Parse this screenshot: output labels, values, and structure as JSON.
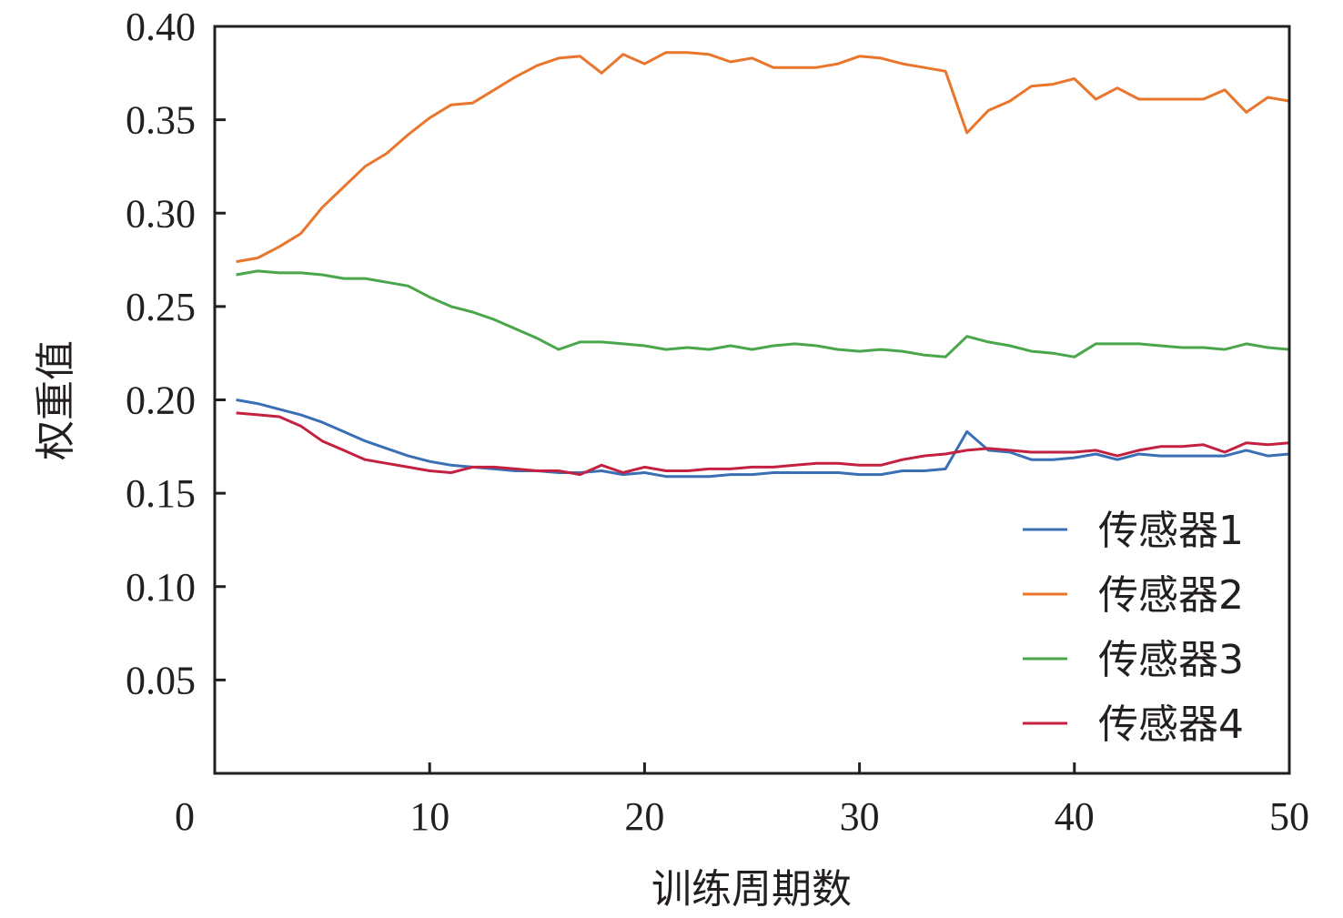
{
  "chart_data": {
    "type": "line",
    "title": "",
    "xlabel": "训练周期数",
    "ylabel": "权重值",
    "xlim": [
      0,
      50
    ],
    "ylim": [
      0,
      0.4
    ],
    "origin_label": "0",
    "xticks": [
      10,
      20,
      30,
      40,
      50
    ],
    "xtick_labels": [
      "10",
      "20",
      "30",
      "40",
      "50"
    ],
    "yticks": [
      0.05,
      0.1,
      0.15,
      0.2,
      0.25,
      0.3,
      0.35,
      0.4
    ],
    "ytick_labels": [
      "0.05",
      "0.10",
      "0.15",
      "0.20",
      "0.25",
      "0.30",
      "0.35",
      "0.40"
    ],
    "grid": false,
    "legend_position": "bottom-right",
    "x": [
      1,
      2,
      3,
      4,
      5,
      6,
      7,
      8,
      9,
      10,
      11,
      12,
      13,
      14,
      15,
      16,
      17,
      18,
      19,
      20,
      21,
      22,
      23,
      24,
      25,
      26,
      27,
      28,
      29,
      30,
      31,
      32,
      33,
      34,
      35,
      36,
      37,
      38,
      39,
      40,
      41,
      42,
      43,
      44,
      45,
      46,
      47,
      48,
      49,
      50
    ],
    "series": [
      {
        "name": "传感器1",
        "color": "#3a6fb5",
        "values": [
          0.2,
          0.198,
          0.195,
          0.192,
          0.188,
          0.183,
          0.178,
          0.174,
          0.17,
          0.167,
          0.165,
          0.164,
          0.163,
          0.162,
          0.162,
          0.161,
          0.161,
          0.162,
          0.16,
          0.161,
          0.159,
          0.159,
          0.159,
          0.16,
          0.16,
          0.161,
          0.161,
          0.161,
          0.161,
          0.16,
          0.16,
          0.162,
          0.162,
          0.163,
          0.183,
          0.173,
          0.172,
          0.168,
          0.168,
          0.169,
          0.171,
          0.168,
          0.171,
          0.17,
          0.17,
          0.17,
          0.17,
          0.173,
          0.17,
          0.171
        ]
      },
      {
        "name": "传感器2",
        "color": "#e8762d",
        "values": [
          0.274,
          0.276,
          0.282,
          0.289,
          0.303,
          0.314,
          0.325,
          0.332,
          0.342,
          0.351,
          0.358,
          0.359,
          0.366,
          0.373,
          0.379,
          0.383,
          0.384,
          0.375,
          0.385,
          0.38,
          0.386,
          0.386,
          0.385,
          0.381,
          0.383,
          0.378,
          0.378,
          0.378,
          0.38,
          0.384,
          0.383,
          0.38,
          0.378,
          0.376,
          0.343,
          0.355,
          0.36,
          0.368,
          0.369,
          0.372,
          0.361,
          0.367,
          0.361,
          0.361,
          0.361,
          0.361,
          0.366,
          0.354,
          0.362,
          0.36
        ]
      },
      {
        "name": "传感器3",
        "color": "#4aa64a",
        "values": [
          0.267,
          0.269,
          0.268,
          0.268,
          0.267,
          0.265,
          0.265,
          0.263,
          0.261,
          0.255,
          0.25,
          0.247,
          0.243,
          0.238,
          0.233,
          0.227,
          0.231,
          0.231,
          0.23,
          0.229,
          0.227,
          0.228,
          0.227,
          0.229,
          0.227,
          0.229,
          0.23,
          0.229,
          0.227,
          0.226,
          0.227,
          0.226,
          0.224,
          0.223,
          0.234,
          0.231,
          0.229,
          0.226,
          0.225,
          0.223,
          0.23,
          0.23,
          0.23,
          0.229,
          0.228,
          0.228,
          0.227,
          0.23,
          0.228,
          0.227
        ]
      },
      {
        "name": "传感器4",
        "color": "#c42040",
        "values": [
          0.193,
          0.192,
          0.191,
          0.186,
          0.178,
          0.173,
          0.168,
          0.166,
          0.164,
          0.162,
          0.161,
          0.164,
          0.164,
          0.163,
          0.162,
          0.162,
          0.16,
          0.165,
          0.161,
          0.164,
          0.162,
          0.162,
          0.163,
          0.163,
          0.164,
          0.164,
          0.165,
          0.166,
          0.166,
          0.165,
          0.165,
          0.168,
          0.17,
          0.171,
          0.173,
          0.174,
          0.173,
          0.172,
          0.172,
          0.172,
          0.173,
          0.17,
          0.173,
          0.175,
          0.175,
          0.176,
          0.172,
          0.177,
          0.176,
          0.177
        ]
      }
    ]
  }
}
